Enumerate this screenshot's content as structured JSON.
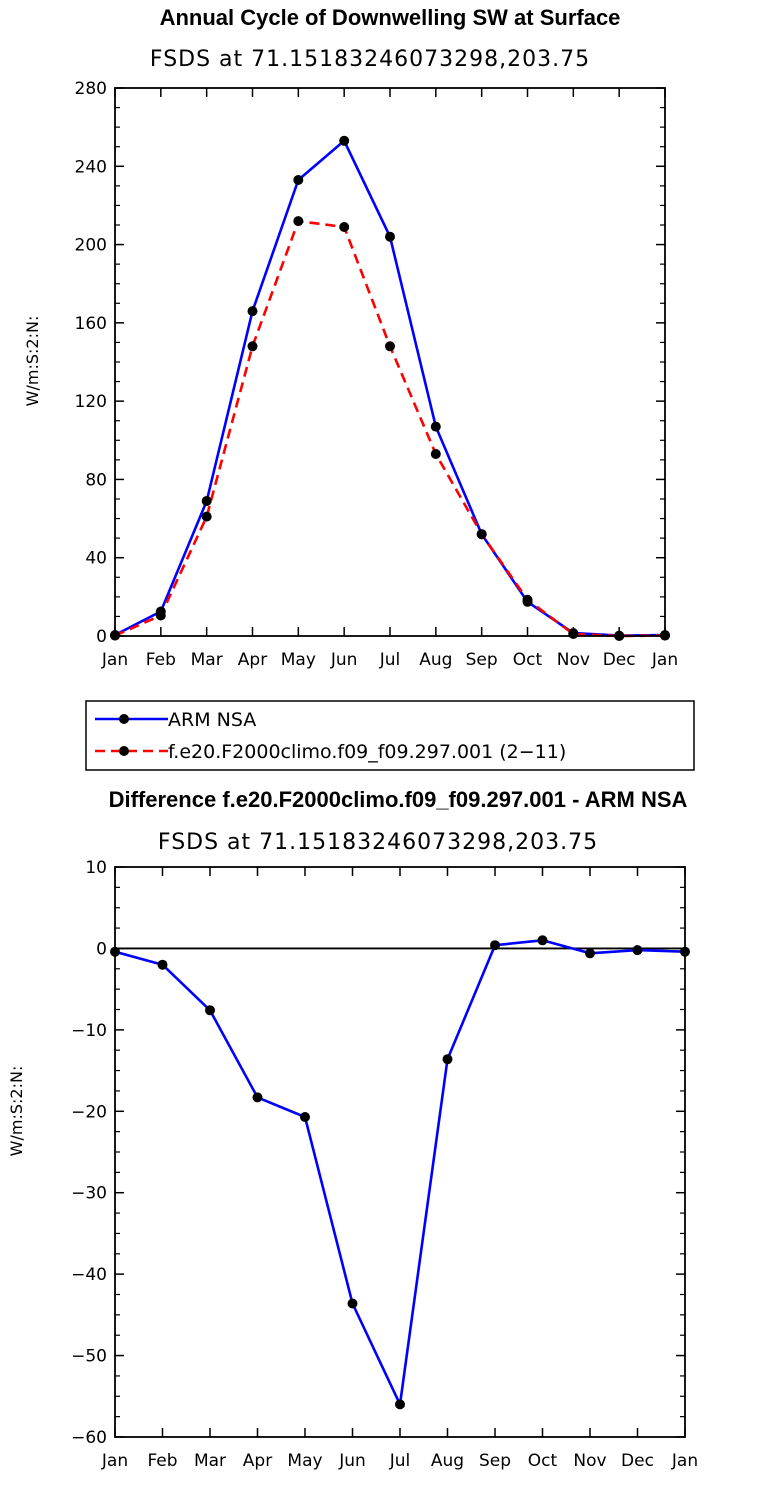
{
  "chart_data": [
    {
      "type": "line",
      "title": "Annual Cycle of Downwelling SW at Surface",
      "subtitle": "FSDS at 71.15183246073298,203.75",
      "ylabel": "W/m:S:2:N:",
      "xlabel": "",
      "categories": [
        "Jan",
        "Feb",
        "Mar",
        "Apr",
        "May",
        "Jun",
        "Jul",
        "Aug",
        "Sep",
        "Oct",
        "Nov",
        "Dec",
        "Jan"
      ],
      "ylim": [
        0,
        280
      ],
      "yticks": [
        0,
        40,
        80,
        120,
        160,
        200,
        240,
        280
      ],
      "ytick_labels": [
        "0",
        "40",
        "80",
        "120",
        "160",
        "200",
        "240",
        "280"
      ],
      "legend_placement": "below",
      "series": [
        {
          "name": "ARM NSA",
          "color": "#0000ff",
          "dash": "solid",
          "values": [
            0.5,
            12.5,
            69,
            166,
            233,
            253,
            204,
            107,
            52,
            17.5,
            1.5,
            0.2,
            0.5
          ]
        },
        {
          "name": "f.e20.F2000climo.f09_f09.297.001 (2−11)",
          "color": "#ff0000",
          "dash": "dashed",
          "values": [
            0.2,
            10.5,
            61,
            148,
            212,
            209,
            148,
            93,
            52,
            18.5,
            1.0,
            0.0,
            0.2
          ]
        }
      ]
    },
    {
      "type": "line",
      "title": "Difference f.e20.F2000climo.f09_f09.297.001 - ARM NSA",
      "subtitle": "FSDS at 71.15183246073298,203.75",
      "ylabel": "W/m:S:2:N:",
      "xlabel": "",
      "categories": [
        "Jan",
        "Feb",
        "Mar",
        "Apr",
        "May",
        "Jun",
        "Jul",
        "Aug",
        "Sep",
        "Oct",
        "Nov",
        "Dec",
        "Jan"
      ],
      "ylim": [
        -60,
        10
      ],
      "yticks": [
        -60,
        -50,
        -40,
        -30,
        -20,
        -10,
        0,
        10
      ],
      "ytick_labels": [
        "−60",
        "−50",
        "−40",
        "−30",
        "−20",
        "−10",
        "0",
        "10"
      ],
      "series": [
        {
          "color": "#0000ff",
          "dash": "solid",
          "values": [
            -0.4,
            -2.0,
            -7.6,
            -18.3,
            -20.7,
            -43.6,
            -56.0,
            -13.6,
            0.4,
            1.0,
            -0.6,
            -0.2,
            -0.4
          ]
        }
      ]
    }
  ]
}
